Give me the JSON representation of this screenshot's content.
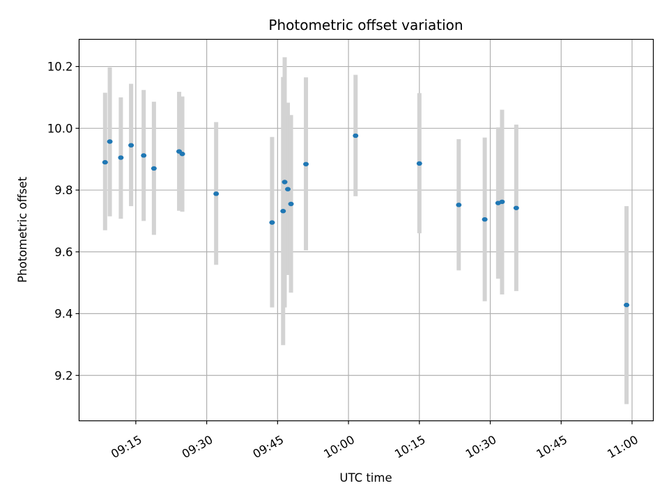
{
  "chart_data": {
    "type": "scatter",
    "title": "Photometric offset variation",
    "xlabel": "UTC time",
    "ylabel": "Photometric offset",
    "x_unit": "time (HH:MM, UTC)",
    "xlim": [
      "09:03:00",
      "11:04:30"
    ],
    "ylim": [
      9.053,
      10.288
    ],
    "xticks": [
      "09:15",
      "09:30",
      "09:45",
      "10:00",
      "10:15",
      "10:30",
      "10:45",
      "11:00"
    ],
    "yticks": [
      9.2,
      9.4,
      9.6,
      9.8,
      10.0,
      10.2
    ],
    "grid": true,
    "marker_color": "#1f77b4",
    "errorbar_color": "#d3d3d3",
    "points": [
      {
        "x": "09:08:30",
        "y": 9.89,
        "ylo": 9.67,
        "yhi": 10.115
      },
      {
        "x": "09:09:30",
        "y": 9.957,
        "ylo": 9.715,
        "yhi": 10.197
      },
      {
        "x": "09:11:50",
        "y": 9.905,
        "ylo": 9.707,
        "yhi": 10.1
      },
      {
        "x": "09:14:00",
        "y": 9.945,
        "ylo": 9.748,
        "yhi": 10.144
      },
      {
        "x": "09:16:40",
        "y": 9.912,
        "ylo": 9.7,
        "yhi": 10.124
      },
      {
        "x": "09:18:50",
        "y": 9.87,
        "ylo": 9.655,
        "yhi": 10.086
      },
      {
        "x": "09:24:10",
        "y": 9.925,
        "ylo": 9.733,
        "yhi": 10.118
      },
      {
        "x": "09:24:50",
        "y": 9.917,
        "ylo": 9.73,
        "yhi": 10.103
      },
      {
        "x": "09:32:00",
        "y": 9.788,
        "ylo": 9.558,
        "yhi": 10.02
      },
      {
        "x": "09:43:50",
        "y": 9.695,
        "ylo": 9.42,
        "yhi": 9.972
      },
      {
        "x": "09:46:10",
        "y": 9.732,
        "ylo": 9.298,
        "yhi": 10.166
      },
      {
        "x": "09:46:30",
        "y": 9.826,
        "ylo": 9.42,
        "yhi": 10.23
      },
      {
        "x": "09:47:10",
        "y": 9.803,
        "ylo": 9.525,
        "yhi": 10.083
      },
      {
        "x": "09:47:50",
        "y": 9.755,
        "ylo": 9.468,
        "yhi": 10.043
      },
      {
        "x": "09:51:00",
        "y": 9.884,
        "ylo": 9.605,
        "yhi": 10.165
      },
      {
        "x": "10:01:30",
        "y": 9.976,
        "ylo": 9.78,
        "yhi": 10.173
      },
      {
        "x": "10:15:00",
        "y": 9.886,
        "ylo": 9.66,
        "yhi": 10.114
      },
      {
        "x": "10:23:20",
        "y": 9.752,
        "ylo": 9.54,
        "yhi": 9.965
      },
      {
        "x": "10:28:50",
        "y": 9.705,
        "ylo": 9.44,
        "yhi": 9.97
      },
      {
        "x": "10:31:40",
        "y": 9.758,
        "ylo": 9.513,
        "yhi": 10.003
      },
      {
        "x": "10:32:30",
        "y": 9.762,
        "ylo": 9.462,
        "yhi": 10.06
      },
      {
        "x": "10:35:30",
        "y": 9.742,
        "ylo": 9.473,
        "yhi": 10.012
      },
      {
        "x": "10:58:50",
        "y": 9.428,
        "ylo": 9.107,
        "yhi": 9.748
      }
    ]
  }
}
